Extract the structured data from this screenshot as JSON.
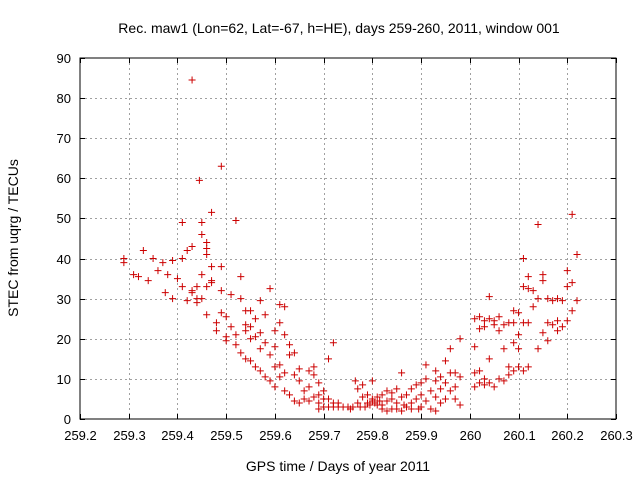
{
  "chart_data": {
    "type": "scatter",
    "title": "Rec. maw1 (Lon=62, Lat=-67, h=HE), days 259-260, 2011, window 001",
    "xlabel": "GPS time / Days of year 2011",
    "ylabel": "STEC from uqrg / TECUs",
    "xlim": [
      259.2,
      260.3
    ],
    "ylim": [
      0,
      90
    ],
    "x_ticks": [
      259.2,
      259.3,
      259.4,
      259.5,
      259.6,
      259.7,
      259.8,
      259.9,
      260,
      260.1,
      260.2,
      260.3
    ],
    "x_tick_labels": [
      "259.2",
      "259.3",
      "259.4",
      "259.5",
      "259.6",
      "259.7",
      "259.8",
      "259.9",
      "260",
      "260.1",
      "260.2",
      "260.3"
    ],
    "y_ticks": [
      0,
      10,
      20,
      30,
      40,
      50,
      60,
      70,
      80,
      90
    ],
    "y_tick_labels": [
      "0",
      "10",
      "20",
      "30",
      "40",
      "50",
      "60",
      "70",
      "80",
      "90"
    ],
    "grid": true,
    "marker": "plus",
    "color": "#cc0000",
    "series": [
      {
        "points": [
          [
            259.29,
            40
          ],
          [
            259.29,
            39
          ],
          [
            259.31,
            36
          ],
          [
            259.32,
            35.5
          ],
          [
            259.33,
            42
          ],
          [
            259.34,
            34.5
          ],
          [
            259.35,
            40
          ],
          [
            259.36,
            37
          ],
          [
            259.37,
            39
          ],
          [
            259.375,
            31.5
          ],
          [
            259.38,
            36
          ],
          [
            259.39,
            39.5
          ],
          [
            259.39,
            30
          ],
          [
            259.4,
            35
          ],
          [
            259.41,
            49
          ],
          [
            259.41,
            40
          ],
          [
            259.41,
            33
          ],
          [
            259.42,
            42
          ],
          [
            259.42,
            29.5
          ],
          [
            259.43,
            84.5
          ],
          [
            259.43,
            43
          ],
          [
            259.43,
            31.5
          ],
          [
            259.43,
            32
          ],
          [
            259.44,
            29
          ],
          [
            259.44,
            33
          ],
          [
            259.44,
            30
          ],
          [
            259.445,
            59.5
          ],
          [
            259.45,
            49
          ],
          [
            259.45,
            46
          ],
          [
            259.45,
            36
          ],
          [
            259.45,
            30
          ],
          [
            259.46,
            44
          ],
          [
            259.46,
            42.5
          ],
          [
            259.46,
            41
          ],
          [
            259.46,
            33
          ],
          [
            259.46,
            26
          ],
          [
            259.47,
            51.5
          ],
          [
            259.47,
            38
          ],
          [
            259.47,
            34
          ],
          [
            259.47,
            34.5
          ],
          [
            259.48,
            24
          ],
          [
            259.48,
            22
          ],
          [
            259.49,
            63
          ],
          [
            259.49,
            38
          ],
          [
            259.49,
            32
          ],
          [
            259.49,
            26.5
          ],
          [
            259.5,
            20.5
          ],
          [
            259.5,
            25.5
          ],
          [
            259.5,
            19.5
          ],
          [
            259.51,
            31
          ],
          [
            259.51,
            23
          ],
          [
            259.52,
            49.5
          ],
          [
            259.52,
            21
          ],
          [
            259.52,
            18.5
          ],
          [
            259.53,
            35.5
          ],
          [
            259.53,
            30
          ],
          [
            259.53,
            16.5
          ],
          [
            259.54,
            27
          ],
          [
            259.54,
            23.5
          ],
          [
            259.54,
            22
          ],
          [
            259.54,
            15
          ],
          [
            259.55,
            27
          ],
          [
            259.55,
            20
          ],
          [
            259.55,
            23
          ],
          [
            259.55,
            14.5
          ],
          [
            259.56,
            25
          ],
          [
            259.56,
            20.5
          ],
          [
            259.56,
            13
          ],
          [
            259.57,
            29.5
          ],
          [
            259.57,
            21.5
          ],
          [
            259.57,
            17.5
          ],
          [
            259.57,
            12
          ],
          [
            259.58,
            26
          ],
          [
            259.58,
            19
          ],
          [
            259.58,
            10.5
          ],
          [
            259.59,
            32.5
          ],
          [
            259.59,
            16
          ],
          [
            259.59,
            9.5
          ],
          [
            259.6,
            22
          ],
          [
            259.6,
            18
          ],
          [
            259.6,
            13
          ],
          [
            259.6,
            8
          ],
          [
            259.61,
            28.5
          ],
          [
            259.61,
            24
          ],
          [
            259.61,
            13.5
          ],
          [
            259.61,
            10.5
          ],
          [
            259.62,
            28
          ],
          [
            259.62,
            21
          ],
          [
            259.62,
            11.5
          ],
          [
            259.62,
            7
          ],
          [
            259.63,
            18.5
          ],
          [
            259.63,
            16
          ],
          [
            259.63,
            6
          ],
          [
            259.64,
            16.5
          ],
          [
            259.64,
            11
          ],
          [
            259.64,
            4.5
          ],
          [
            259.65,
            12.5
          ],
          [
            259.65,
            9.5
          ],
          [
            259.65,
            4
          ],
          [
            259.66,
            7
          ],
          [
            259.66,
            5
          ],
          [
            259.67,
            12
          ],
          [
            259.67,
            8
          ],
          [
            259.67,
            4.5
          ],
          [
            259.68,
            13
          ],
          [
            259.68,
            11
          ],
          [
            259.68,
            5.5
          ],
          [
            259.69,
            9
          ],
          [
            259.69,
            6
          ],
          [
            259.69,
            4
          ],
          [
            259.69,
            2.5
          ],
          [
            259.7,
            7
          ],
          [
            259.7,
            5
          ],
          [
            259.7,
            3
          ],
          [
            259.71,
            15
          ],
          [
            259.71,
            5
          ],
          [
            259.71,
            3
          ],
          [
            259.72,
            19
          ],
          [
            259.72,
            4
          ],
          [
            259.72,
            3
          ],
          [
            259.73,
            4
          ],
          [
            259.73,
            3
          ],
          [
            259.74,
            3
          ],
          [
            259.75,
            3
          ],
          [
            259.755,
            2.5
          ],
          [
            259.76,
            3
          ],
          [
            259.765,
            9.5
          ],
          [
            259.77,
            7.5
          ],
          [
            259.77,
            4
          ],
          [
            259.775,
            3
          ],
          [
            259.78,
            8.5
          ],
          [
            259.78,
            5.5
          ],
          [
            259.785,
            3
          ],
          [
            259.79,
            6
          ],
          [
            259.79,
            4
          ],
          [
            259.795,
            3.5
          ],
          [
            259.8,
            9.5
          ],
          [
            259.8,
            5
          ],
          [
            259.8,
            4.5
          ],
          [
            259.805,
            4
          ],
          [
            259.81,
            5.5
          ],
          [
            259.81,
            3.5
          ],
          [
            259.815,
            4.5
          ],
          [
            259.82,
            6
          ],
          [
            259.82,
            3.5
          ],
          [
            259.82,
            2.5
          ],
          [
            259.83,
            7
          ],
          [
            259.83,
            4.5
          ],
          [
            259.83,
            2
          ],
          [
            259.84,
            6.5
          ],
          [
            259.84,
            5
          ],
          [
            259.84,
            2.5
          ],
          [
            259.85,
            7.5
          ],
          [
            259.85,
            4
          ],
          [
            259.85,
            2.5
          ],
          [
            259.86,
            11.5
          ],
          [
            259.86,
            5.5
          ],
          [
            259.86,
            2
          ],
          [
            259.865,
            3.5
          ],
          [
            259.87,
            6
          ],
          [
            259.87,
            3
          ],
          [
            259.88,
            7.5
          ],
          [
            259.88,
            2.5
          ],
          [
            259.88,
            4
          ],
          [
            259.89,
            8.5
          ],
          [
            259.89,
            5
          ],
          [
            259.895,
            2.5
          ],
          [
            259.9,
            9
          ],
          [
            259.9,
            6
          ],
          [
            259.9,
            3
          ],
          [
            259.91,
            13.5
          ],
          [
            259.91,
            10
          ],
          [
            259.91,
            4.5
          ],
          [
            259.92,
            7
          ],
          [
            259.92,
            2.5
          ],
          [
            259.93,
            12
          ],
          [
            259.93,
            9.5
          ],
          [
            259.93,
            5.5
          ],
          [
            259.93,
            2
          ],
          [
            259.94,
            10.5
          ],
          [
            259.94,
            7.5
          ],
          [
            259.94,
            4
          ],
          [
            259.95,
            14.5
          ],
          [
            259.95,
            9
          ],
          [
            259.95,
            5
          ],
          [
            259.96,
            17.5
          ],
          [
            259.96,
            11.5
          ],
          [
            259.96,
            7
          ],
          [
            259.97,
            11.5
          ],
          [
            259.97,
            8
          ],
          [
            259.97,
            5
          ],
          [
            259.98,
            20
          ],
          [
            259.98,
            10.5
          ],
          [
            259.98,
            3.5
          ],
          [
            260.01,
            25
          ],
          [
            260.01,
            18
          ],
          [
            260.01,
            11.5
          ],
          [
            260.01,
            8
          ],
          [
            260.02,
            25.5
          ],
          [
            260.02,
            22.5
          ],
          [
            260.02,
            12
          ],
          [
            260.02,
            9
          ],
          [
            260.03,
            24.5
          ],
          [
            260.03,
            23
          ],
          [
            260.03,
            10
          ],
          [
            260.03,
            8.5
          ],
          [
            260.04,
            30.5
          ],
          [
            260.04,
            25
          ],
          [
            260.04,
            15
          ],
          [
            260.04,
            9
          ],
          [
            260.05,
            24.5
          ],
          [
            260.05,
            23.5
          ],
          [
            260.05,
            8
          ],
          [
            260.06,
            25.5
          ],
          [
            260.06,
            22
          ],
          [
            260.06,
            10
          ],
          [
            260.07,
            23.5
          ],
          [
            260.07,
            17.5
          ],
          [
            260.07,
            9.5
          ],
          [
            260.08,
            24
          ],
          [
            260.08,
            13
          ],
          [
            260.08,
            11
          ],
          [
            260.09,
            27
          ],
          [
            260.09,
            24
          ],
          [
            260.09,
            12
          ],
          [
            260.09,
            19
          ],
          [
            260.1,
            26.5
          ],
          [
            260.1,
            21
          ],
          [
            260.1,
            17.5
          ],
          [
            260.1,
            13
          ],
          [
            260.11,
            40
          ],
          [
            260.11,
            33
          ],
          [
            260.11,
            24
          ],
          [
            260.11,
            12
          ],
          [
            260.12,
            35.5
          ],
          [
            260.12,
            32.5
          ],
          [
            260.12,
            24
          ],
          [
            260.12,
            13
          ],
          [
            260.13,
            32
          ],
          [
            260.13,
            28
          ],
          [
            260.14,
            48.5
          ],
          [
            260.14,
            30
          ],
          [
            260.14,
            17.5
          ],
          [
            260.15,
            34.5
          ],
          [
            260.15,
            36
          ],
          [
            260.15,
            21.5
          ],
          [
            260.16,
            30
          ],
          [
            260.16,
            24
          ],
          [
            260.16,
            19.5
          ],
          [
            260.17,
            29.5
          ],
          [
            260.17,
            23.5
          ],
          [
            260.18,
            30
          ],
          [
            260.18,
            24.5
          ],
          [
            260.18,
            22
          ],
          [
            260.19,
            29.5
          ],
          [
            260.19,
            23
          ],
          [
            260.2,
            37
          ],
          [
            260.2,
            33
          ],
          [
            260.2,
            24.5
          ],
          [
            260.21,
            51
          ],
          [
            260.21,
            34
          ],
          [
            260.21,
            27
          ],
          [
            260.22,
            41
          ],
          [
            260.22,
            29.5
          ]
        ]
      }
    ]
  }
}
